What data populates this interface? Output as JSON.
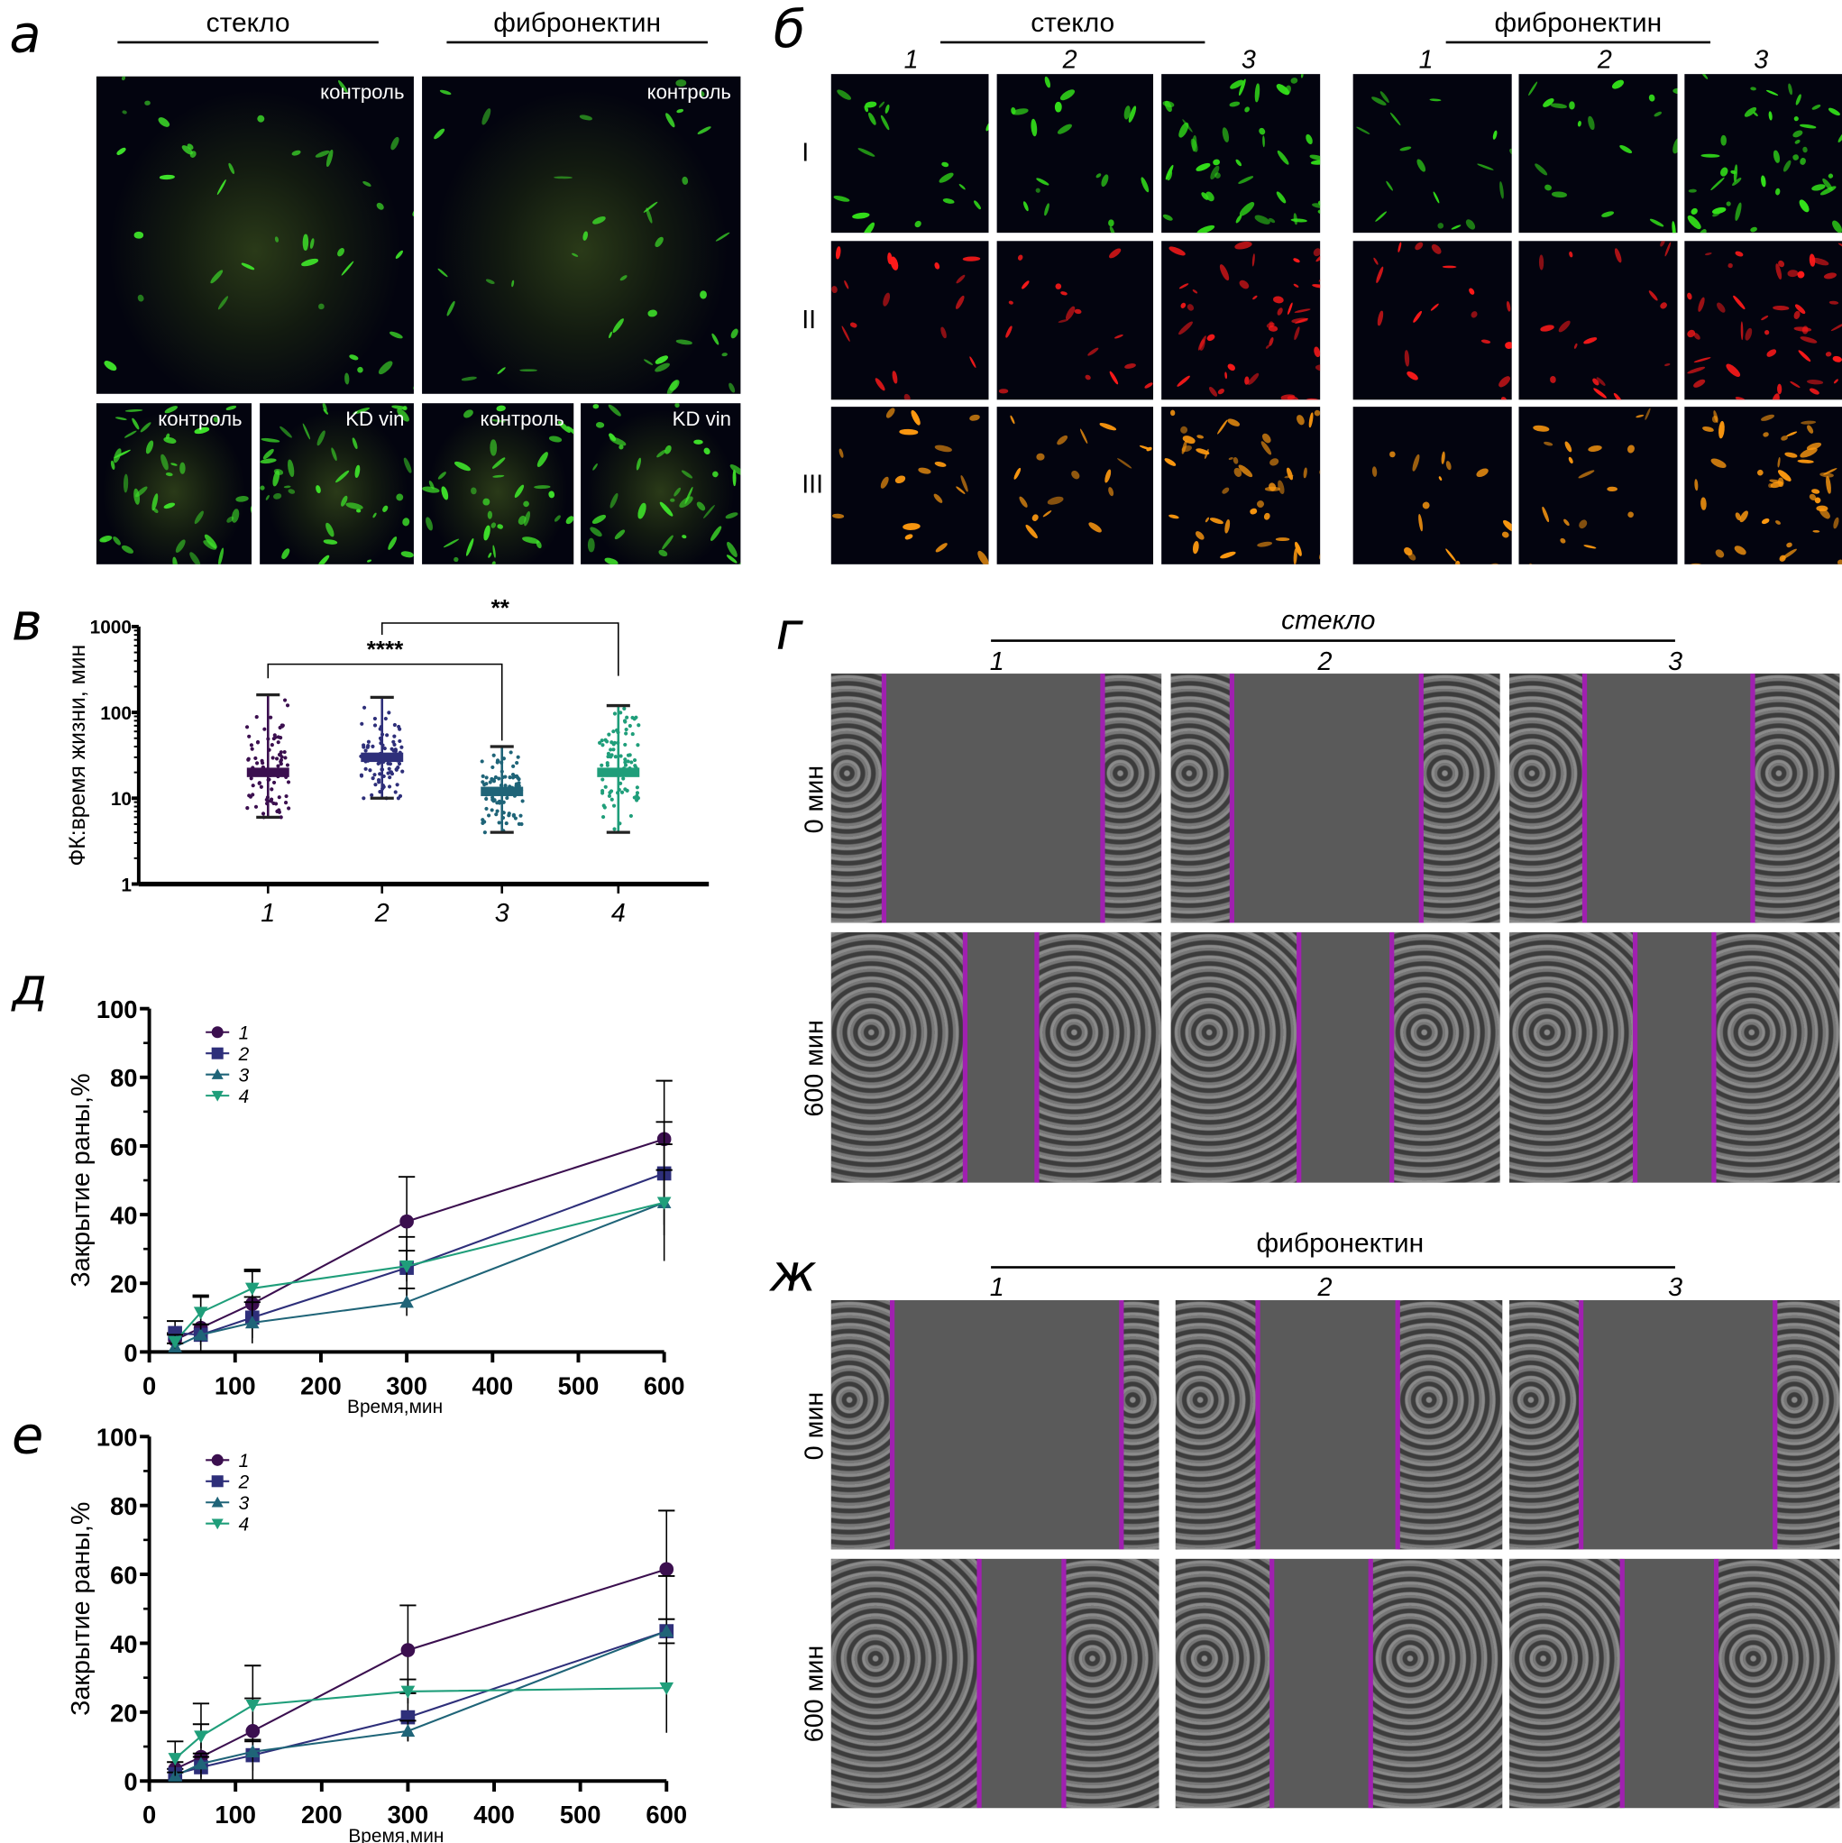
{
  "panels": {
    "a": {
      "label": "а",
      "headers": [
        "стекло",
        "фибронектин"
      ],
      "top_labels": [
        "контроль",
        "контроль"
      ],
      "bottom_labels": [
        "контроль",
        "KD vin",
        "контроль",
        "KD vin"
      ]
    },
    "b": {
      "label": "б",
      "headers": [
        "стекло",
        "фибронектин"
      ],
      "columns": [
        "1",
        "2",
        "3",
        "1",
        "2",
        "3"
      ],
      "rows": [
        "I",
        "II",
        "III"
      ],
      "row_colors": [
        "#33e01a",
        "#ff1a1a",
        "#ff9a10"
      ]
    },
    "v": {
      "label": "в"
    },
    "g": {
      "label": "г",
      "header": "стекло",
      "columns": [
        "1",
        "2",
        "3"
      ],
      "rows": [
        "0 мин",
        "600 мин"
      ]
    },
    "d": {
      "label": "д"
    },
    "e": {
      "label": "е"
    },
    "zh": {
      "label": "ж",
      "header": "фибронектин",
      "columns": [
        "1",
        "2",
        "3"
      ],
      "rows": [
        "0 мин",
        "600 мин"
      ]
    }
  },
  "chart_data": [
    {
      "id": "v",
      "type": "scatter",
      "ylabel": "ФК:время жизни, мин",
      "yscale": "log",
      "ylim": [
        1,
        1000
      ],
      "yticks": [
        "1",
        "10",
        "100",
        "1000"
      ],
      "categories": [
        "1",
        "2",
        "3",
        "4"
      ],
      "colors": [
        "#3b0f4f",
        "#2e2f7a",
        "#1f6478",
        "#1f9e7a"
      ],
      "median": [
        20,
        30,
        12,
        20
      ],
      "min": [
        6,
        10,
        4,
        4
      ],
      "max": [
        160,
        150,
        40,
        120
      ],
      "significance": [
        {
          "groups": [
            "1",
            "3"
          ],
          "label": "****"
        },
        {
          "groups": [
            "2",
            "4"
          ],
          "label": "**"
        }
      ]
    },
    {
      "id": "d",
      "type": "line",
      "xlabel": "Время,мин",
      "ylabel": "Закрытие раны,%",
      "xlim": [
        0,
        600
      ],
      "ylim": [
        0,
        100
      ],
      "xticks": [
        "0",
        "100",
        "200",
        "300",
        "400",
        "500",
        "600"
      ],
      "yticks": [
        "0",
        "20",
        "40",
        "60",
        "80",
        "100"
      ],
      "x": [
        30,
        60,
        120,
        300,
        600
      ],
      "legend": "top-left",
      "series": [
        {
          "name": "1",
          "marker": "circle",
          "color": "#3b0f4f",
          "values": [
            3.5,
            7,
            14,
            38,
            62
          ],
          "err": [
            2,
            9,
            10,
            13,
            17
          ]
        },
        {
          "name": "2",
          "marker": "square",
          "color": "#2e2f7a",
          "values": [
            5.5,
            5,
            10,
            24.5,
            52
          ],
          "err": [
            3.5,
            3,
            6,
            9,
            15
          ]
        },
        {
          "name": "3",
          "marker": "triangle-up",
          "color": "#1f6478",
          "values": [
            1.5,
            5,
            8.5,
            14.5,
            43.5
          ],
          "err": [
            1,
            3,
            6,
            4,
            9.5
          ]
        },
        {
          "name": "4",
          "marker": "triangle-down",
          "color": "#1f9e7a",
          "values": [
            3,
            11.5,
            18.5,
            25,
            43.5
          ],
          "err": [
            2,
            5,
            5,
            4.5,
            17
          ]
        }
      ]
    },
    {
      "id": "e",
      "type": "line",
      "xlabel": "Время,мин",
      "ylabel": "Закрытие раны,%",
      "xlim": [
        0,
        600
      ],
      "ylim": [
        0,
        100
      ],
      "xticks": [
        "0",
        "100",
        "200",
        "300",
        "400",
        "500",
        "600"
      ],
      "yticks": [
        "0",
        "20",
        "40",
        "60",
        "80",
        "100"
      ],
      "x": [
        30,
        60,
        120,
        300,
        600
      ],
      "legend": "top-left",
      "series": [
        {
          "name": "1",
          "marker": "circle",
          "color": "#3b0f4f",
          "values": [
            3.5,
            7,
            14.5,
            38,
            61.5
          ],
          "err": [
            2,
            15.5,
            19,
            13,
            17
          ]
        },
        {
          "name": "2",
          "marker": "square",
          "color": "#2e2f7a",
          "values": [
            2,
            4,
            7.5,
            18.5,
            43.5
          ],
          "err": [
            1.5,
            3,
            4.5,
            7,
            16
          ]
        },
        {
          "name": "3",
          "marker": "triangle-up",
          "color": "#1f6478",
          "values": [
            1.5,
            5,
            8.5,
            14.5,
            43.5
          ],
          "err": [
            1,
            3,
            3,
            3,
            3.5
          ]
        },
        {
          "name": "4",
          "marker": "triangle-down",
          "color": "#1f9e7a",
          "values": [
            6.5,
            13,
            22,
            26,
            27
          ],
          "err": [
            5,
            3.5,
            2,
            3.5,
            13
          ]
        }
      ]
    }
  ]
}
